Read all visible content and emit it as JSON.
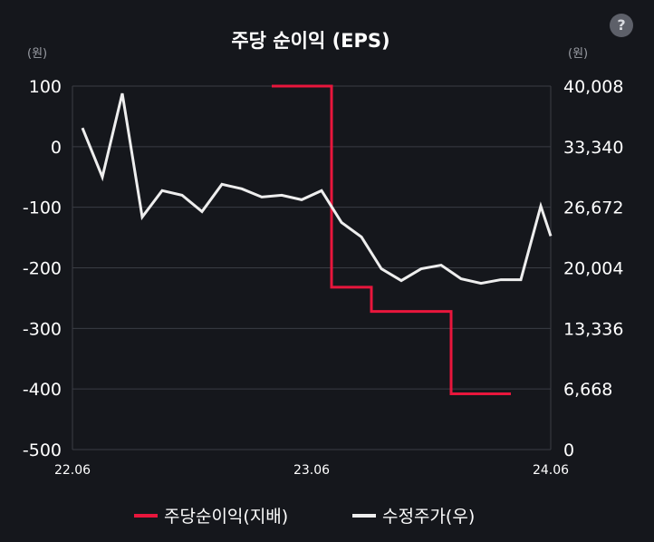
{
  "chart_data": {
    "type": "line",
    "title": "주당 순이익 (EPS)",
    "y_left_unit": "(원)",
    "y_right_unit": "(원)",
    "y_left_ticks": [
      "100",
      "0",
      "-100",
      "-200",
      "-300",
      "-400",
      "-500"
    ],
    "y_right_ticks": [
      "40,008",
      "33,340",
      "26,672",
      "20,004",
      "13,336",
      "6,668",
      "0"
    ],
    "ylim_left": [
      -500,
      100
    ],
    "ylim_right": [
      0,
      40008
    ],
    "x_ticks": [
      "22.06",
      "23.06",
      "24.06"
    ],
    "xlim": [
      0,
      24
    ],
    "grid": true,
    "legend_position": "bottom",
    "series": [
      {
        "name": "주당순이익(지배)",
        "axis": "left",
        "color": "#e8163c",
        "step": true,
        "x": [
          10,
          12,
          14,
          16,
          18,
          20,
          22
        ],
        "y": [
          100,
          100,
          -232,
          -272,
          -272,
          -408,
          -408
        ]
      },
      {
        "name": "수정주가(우)",
        "axis": "right",
        "color": "#eeeeee",
        "step": false,
        "x": [
          0.5,
          1.5,
          2.5,
          3.5,
          4.5,
          5.5,
          6.5,
          7.5,
          8.5,
          9.5,
          10.5,
          11.5,
          12.5,
          13.5,
          14.5,
          15.5,
          16.5,
          17.5,
          18.5,
          19.5,
          20.5,
          21.5,
          22.5,
          23.5,
          24
        ],
        "y": [
          35400,
          30000,
          39200,
          25600,
          28500,
          28000,
          26200,
          29200,
          28700,
          27800,
          28000,
          27500,
          28500,
          25000,
          23400,
          19900,
          18600,
          19900,
          20300,
          18800,
          18300,
          18700,
          18700,
          26800,
          23500
        ]
      }
    ]
  },
  "help_icon": "?"
}
